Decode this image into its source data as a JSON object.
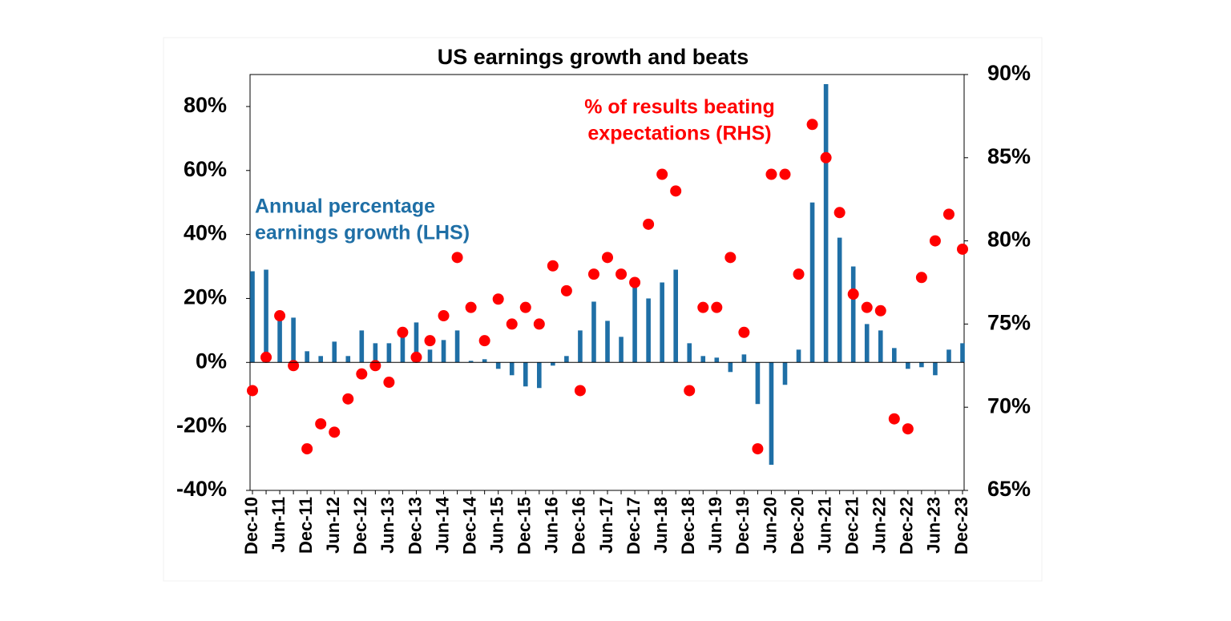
{
  "chart_data": {
    "type": "bar+scatter",
    "title": "US earnings growth and beats",
    "categories": [
      "Dec-10",
      null,
      "Jun-11",
      null,
      "Dec-11",
      null,
      "Jun-12",
      null,
      "Dec-12",
      null,
      "Jun-13",
      null,
      "Dec-13",
      null,
      "Jun-14",
      null,
      "Dec-14",
      null,
      "Jun-15",
      null,
      "Dec-15",
      null,
      "Jun-16",
      null,
      "Dec-16",
      null,
      "Jun-17",
      null,
      "Dec-17",
      null,
      "Jun-18",
      null,
      "Dec-18",
      null,
      "Jun-19",
      null,
      "Dec-19",
      null,
      "Jun-20",
      null,
      "Dec-20",
      null,
      "Jun-21",
      null,
      "Dec-21",
      null,
      "Jun-22",
      null,
      "Dec-22",
      null,
      "Jun-23",
      null,
      "Dec-23"
    ],
    "series": [
      {
        "type": "bar",
        "color": "#1f6fa6",
        "axis": "y",
        "values": [
          28.5,
          29,
          15,
          14,
          3.5,
          2,
          6.5,
          2,
          10,
          6,
          6,
          9,
          12.5,
          4,
          7,
          10,
          0.5,
          1,
          -2,
          -4,
          -7.5,
          -8,
          -1,
          2,
          10,
          19,
          13,
          8,
          24,
          20,
          25,
          29,
          6,
          2,
          1.5,
          -3,
          2.5,
          -13,
          -32,
          -7,
          4,
          50,
          87,
          39,
          30,
          12,
          10,
          4.5,
          -2,
          -1.5,
          -4,
          4,
          6
        ]
      },
      {
        "type": "scatter",
        "color": "#ff0000",
        "axis": "y2",
        "values": [
          71,
          73,
          75.5,
          72.5,
          67.5,
          69,
          68.5,
          70.5,
          72,
          72.5,
          71.5,
          74.5,
          73,
          74,
          75.5,
          79,
          76,
          74,
          76.5,
          75,
          76,
          75,
          78.5,
          77,
          71,
          78,
          79,
          78,
          77.5,
          81,
          84,
          83,
          71,
          76,
          76,
          79,
          74.5,
          67.5,
          84,
          84,
          78,
          87,
          85,
          81.7,
          76.8,
          76,
          75.8,
          69.3,
          68.7,
          77.8,
          80,
          81.6,
          79.5
        ]
      }
    ],
    "annotations": [
      {
        "lines": [
          "Annual percentage",
          "earnings growth (LHS)"
        ],
        "color": "#1f6fa6"
      },
      {
        "lines": [
          "% of results beating",
          "expectations (RHS)"
        ],
        "color": "#ff0000"
      }
    ],
    "ylim": [
      -40,
      90
    ],
    "yticks": [
      {
        "value": -40,
        "label": "-40%"
      },
      {
        "value": -20,
        "label": "-20%"
      },
      {
        "value": 0,
        "label": "0%"
      },
      {
        "value": 20,
        "label": "20%"
      },
      {
        "value": 40,
        "label": "40%"
      },
      {
        "value": 60,
        "label": "60%"
      },
      {
        "value": 80,
        "label": "80%"
      }
    ],
    "y2lim": [
      65,
      90
    ],
    "y2ticks": [
      {
        "value": 65,
        "label": "65%"
      },
      {
        "value": 70,
        "label": "70%"
      },
      {
        "value": 75,
        "label": "75%"
      },
      {
        "value": 80,
        "label": "80%"
      },
      {
        "value": 85,
        "label": "85%"
      },
      {
        "value": 90,
        "label": "90%"
      }
    ]
  }
}
